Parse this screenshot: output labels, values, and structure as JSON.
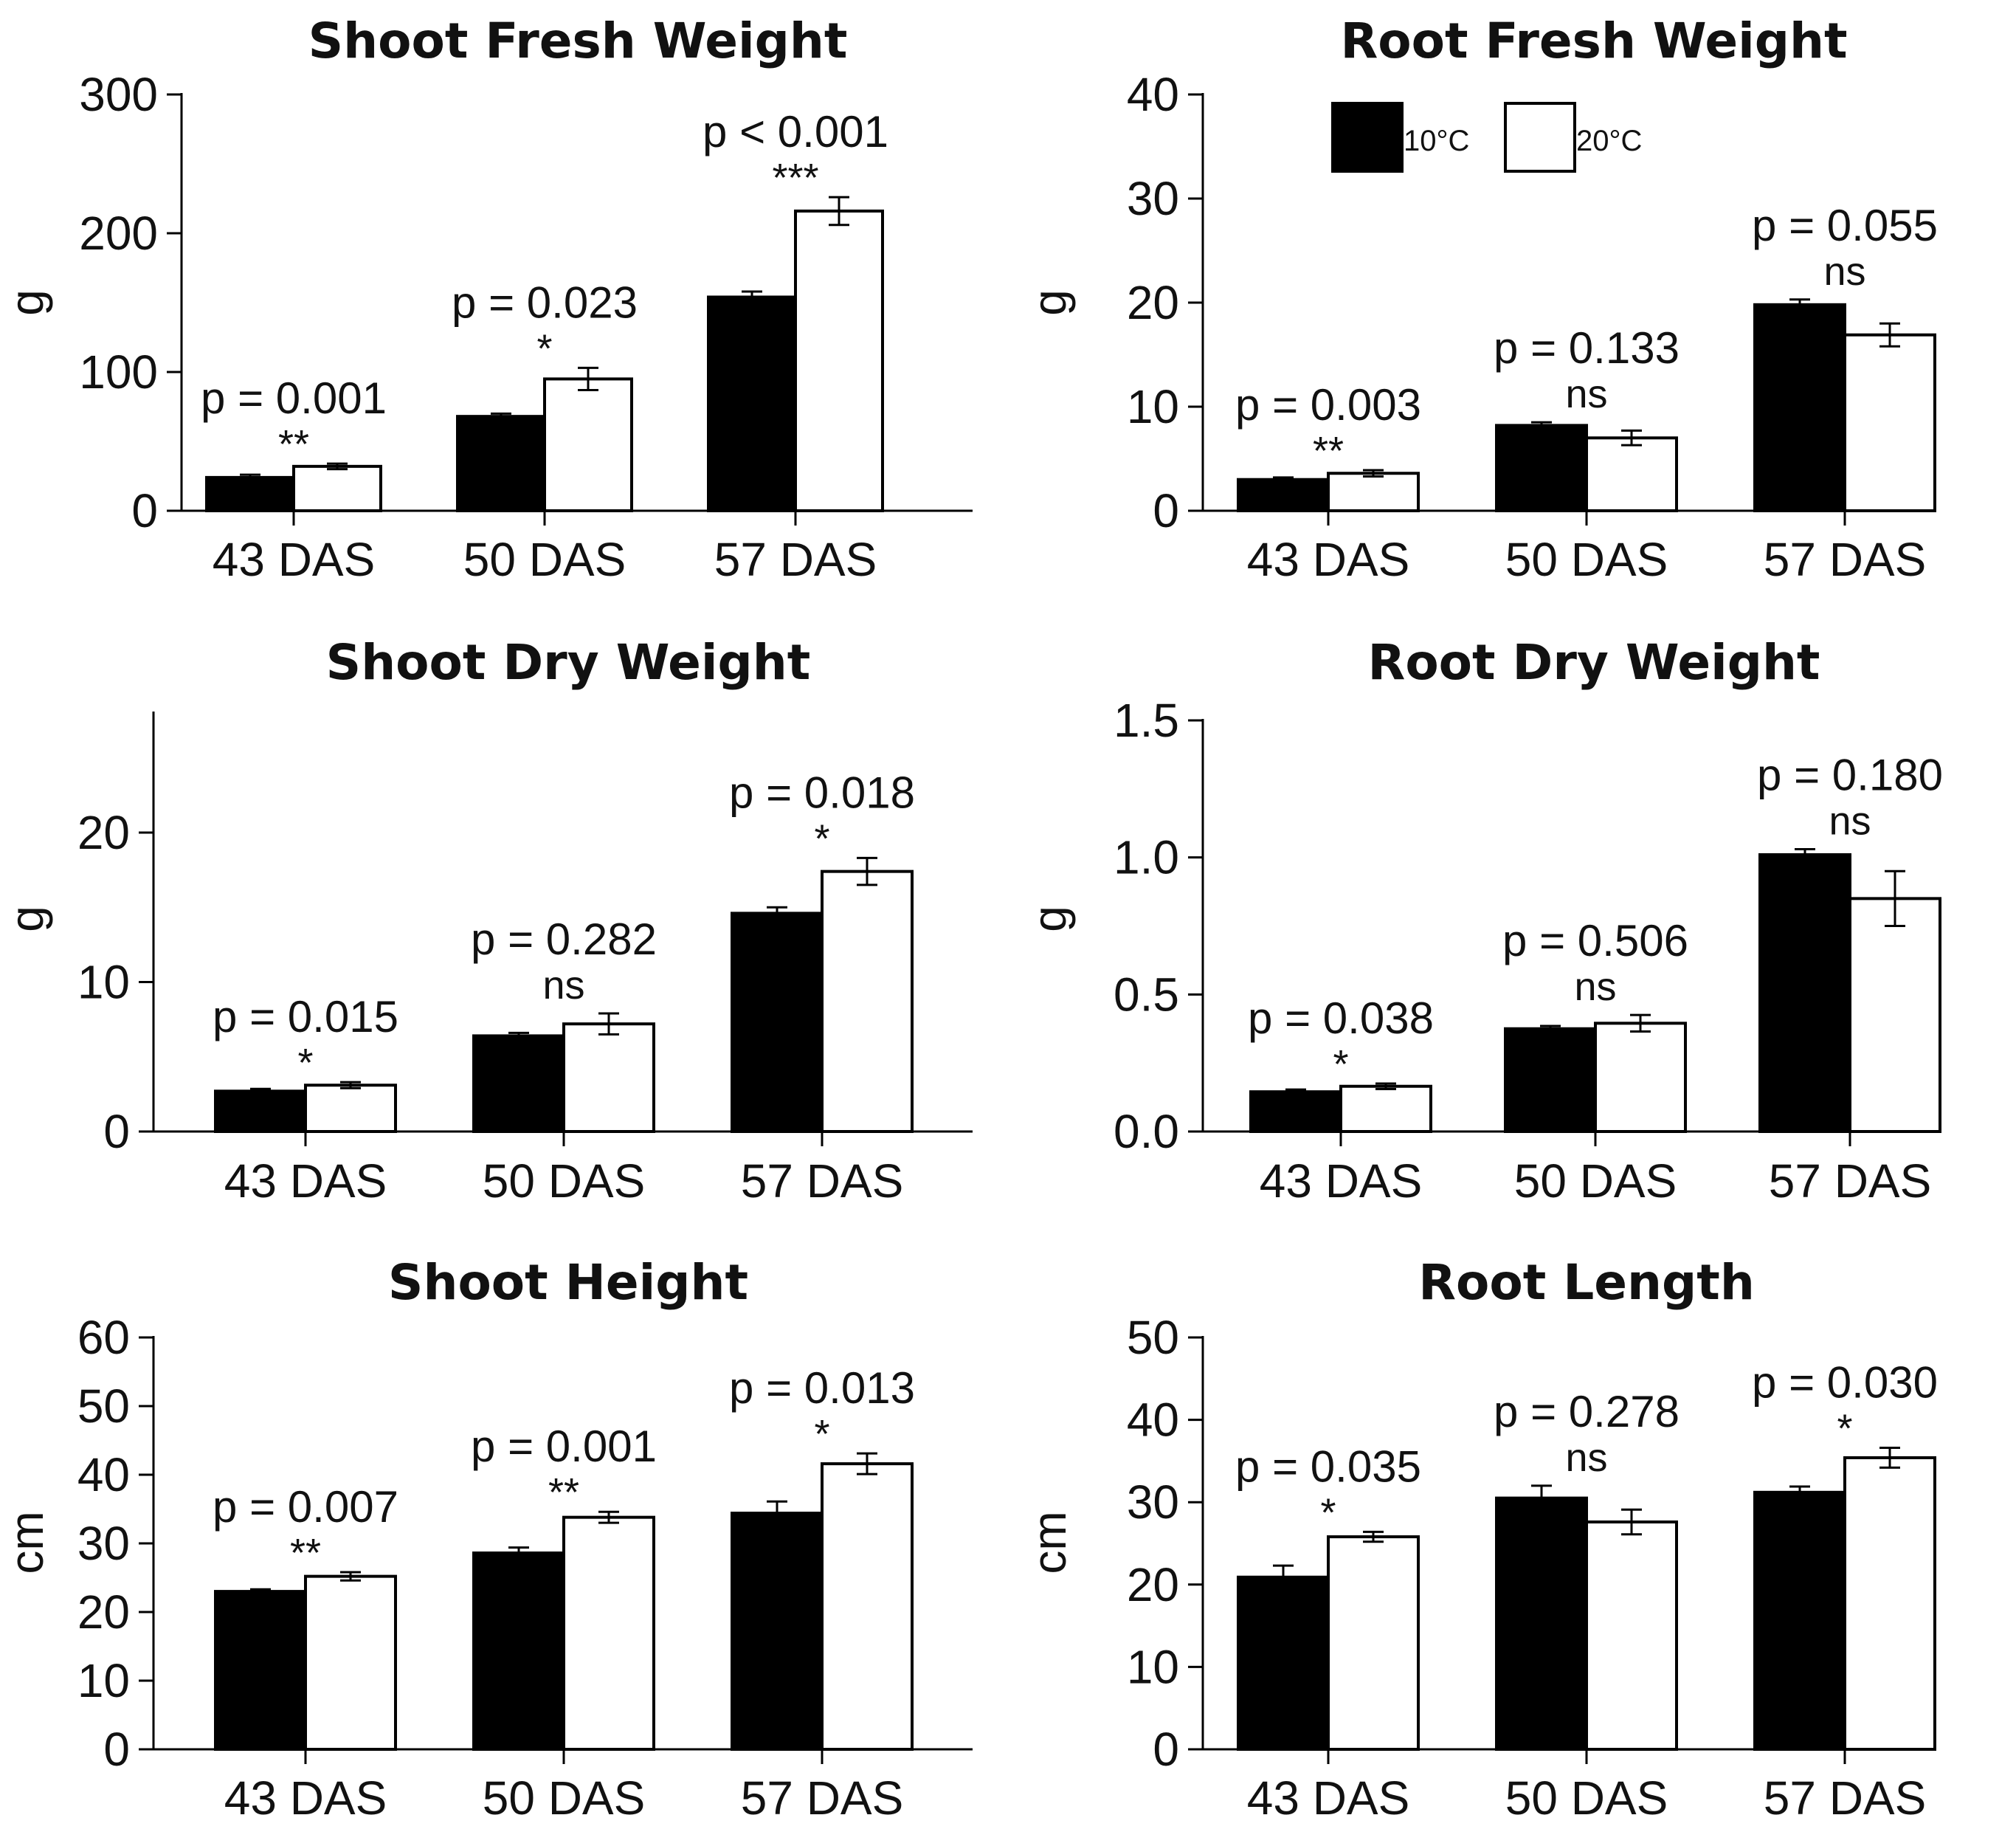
{
  "legend": {
    "items": [
      {
        "label": "10°C",
        "fill": "#000000"
      },
      {
        "label": "20°C",
        "fill": "#ffffff"
      }
    ]
  },
  "colors": {
    "series_10C": "#000000",
    "series_20C": "#ffffff",
    "stroke": "#000000"
  },
  "chart_data": [
    {
      "type": "bar",
      "title": "Shoot Fresh Weight",
      "ylabel": "g",
      "xlabel": "",
      "ylim": [
        0,
        300
      ],
      "yticks": [
        "0",
        "100",
        "200",
        "300"
      ],
      "categories": [
        "43 DAS",
        "50 DAS",
        "57 DAS"
      ],
      "series": [
        {
          "name": "10°C",
          "values": [
            24,
            68,
            154
          ],
          "errors": [
            2,
            2,
            4
          ]
        },
        {
          "name": "20°C",
          "values": [
            32,
            95,
            216
          ],
          "errors": [
            2,
            8,
            10
          ]
        }
      ],
      "pvalues": [
        "p = 0.001",
        "p = 0.023",
        "p < 0.001"
      ],
      "significance": [
        "**",
        "*",
        "***"
      ]
    },
    {
      "type": "bar",
      "title": "Root Fresh Weight",
      "ylabel": "g",
      "xlabel": "",
      "ylim": [
        0,
        40
      ],
      "yticks": [
        "0",
        "10",
        "20",
        "30",
        "40"
      ],
      "categories": [
        "43 DAS",
        "50 DAS",
        "57 DAS"
      ],
      "series": [
        {
          "name": "10°C",
          "values": [
            3,
            8.2,
            19.8
          ],
          "errors": [
            0.2,
            0.3,
            0.5
          ]
        },
        {
          "name": "20°C",
          "values": [
            3.6,
            7,
            16.9
          ],
          "errors": [
            0.3,
            0.7,
            1.1
          ]
        }
      ],
      "pvalues": [
        "p = 0.003",
        "p = 0.133",
        "p = 0.055"
      ],
      "significance": [
        "**",
        "ns",
        "ns"
      ]
    },
    {
      "type": "bar",
      "title": "Shoot Dry Weight",
      "ylabel": "g",
      "xlabel": "",
      "ylim": [
        0,
        28
      ],
      "yticks": [
        "0",
        "10",
        "20"
      ],
      "categories": [
        "43 DAS",
        "50 DAS",
        "57 DAS"
      ],
      "series": [
        {
          "name": "10°C",
          "values": [
            2.7,
            6.4,
            14.6
          ],
          "errors": [
            0.15,
            0.2,
            0.4
          ]
        },
        {
          "name": "20°C",
          "values": [
            3.1,
            7.2,
            17.4
          ],
          "errors": [
            0.2,
            0.7,
            0.9
          ]
        }
      ],
      "pvalues": [
        "p = 0.015",
        "p = 0.282",
        "p = 0.018"
      ],
      "significance": [
        "*",
        "ns",
        "*"
      ]
    },
    {
      "type": "bar",
      "title": "Root Dry Weight",
      "ylabel": "g",
      "xlabel": "",
      "ylim": [
        0,
        1.5
      ],
      "yticks": [
        "0.0",
        "0.5",
        "1.0",
        "1.5"
      ],
      "categories": [
        "43 DAS",
        "50 DAS",
        "57 DAS"
      ],
      "series": [
        {
          "name": "10°C",
          "values": [
            0.145,
            0.375,
            1.01
          ],
          "errors": [
            0.008,
            0.01,
            0.02
          ]
        },
        {
          "name": "20°C",
          "values": [
            0.165,
            0.395,
            0.85
          ],
          "errors": [
            0.01,
            0.03,
            0.1
          ]
        }
      ],
      "pvalues": [
        "p = 0.038",
        "p = 0.506",
        "p = 0.180"
      ],
      "significance": [
        "*",
        "ns",
        "ns"
      ]
    },
    {
      "type": "bar",
      "title": "Shoot Height",
      "ylabel": "cm",
      "xlabel": "",
      "ylim": [
        0,
        60
      ],
      "yticks": [
        "0",
        "10",
        "20",
        "30",
        "40",
        "50",
        "60"
      ],
      "categories": [
        "43 DAS",
        "50 DAS",
        "57 DAS"
      ],
      "series": [
        {
          "name": "10°C",
          "values": [
            23,
            28.6,
            34.4
          ],
          "errors": [
            0.3,
            0.8,
            1.7
          ]
        },
        {
          "name": "20°C",
          "values": [
            25.2,
            33.8,
            41.6
          ],
          "errors": [
            0.6,
            0.8,
            1.5
          ]
        }
      ],
      "pvalues": [
        "p = 0.007",
        "p = 0.001",
        "p = 0.013"
      ],
      "significance": [
        "**",
        "**",
        "*"
      ]
    },
    {
      "type": "bar",
      "title": "Root Length",
      "ylabel": "cm",
      "xlabel": "",
      "ylim": [
        0,
        50
      ],
      "yticks": [
        "0",
        "10",
        "20",
        "30",
        "40",
        "50"
      ],
      "categories": [
        "43 DAS",
        "50 DAS",
        "57 DAS"
      ],
      "series": [
        {
          "name": "10°C",
          "values": [
            20.9,
            30.5,
            31.2
          ],
          "errors": [
            1.4,
            1.5,
            0.7
          ]
        },
        {
          "name": "20°C",
          "values": [
            25.8,
            27.6,
            35.4
          ],
          "errors": [
            0.6,
            1.5,
            1.2
          ]
        }
      ],
      "pvalues": [
        "p = 0.035",
        "p = 0.278",
        "p = 0.030"
      ],
      "significance": [
        "*",
        "ns",
        "*"
      ]
    }
  ]
}
